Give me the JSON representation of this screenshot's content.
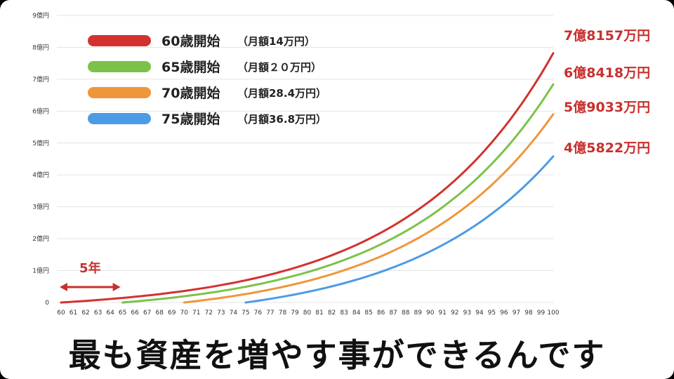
{
  "chart_data": {
    "type": "line",
    "x": [
      60,
      61,
      62,
      63,
      64,
      65,
      66,
      67,
      68,
      69,
      70,
      71,
      72,
      73,
      74,
      75,
      76,
      77,
      78,
      79,
      80,
      81,
      82,
      83,
      84,
      85,
      86,
      87,
      88,
      89,
      90,
      91,
      92,
      93,
      94,
      95,
      96,
      97,
      98,
      99,
      100
    ],
    "y_ticks": [
      "0",
      "1億円",
      "2億円",
      "3億円",
      "4億円",
      "5億円",
      "6億円",
      "7億円",
      "8億円",
      "9億円"
    ],
    "ylim": [
      0,
      9
    ],
    "xlim": [
      60,
      100
    ],
    "grid": true,
    "legend_position": "top-left",
    "series": [
      {
        "name": "60歳開始",
        "sub": "（月額14万円）",
        "color": "#d2322f",
        "start": 60,
        "end_value": 7.8157,
        "end_label": "7億8157万円"
      },
      {
        "name": "65歳開始",
        "sub": "（月額２０万円）",
        "color": "#7cc24a",
        "start": 65,
        "end_value": 6.8418,
        "end_label": "6億8418万円"
      },
      {
        "name": "70歳開始",
        "sub": "（月額28.4万円）",
        "color": "#f0963a",
        "start": 70,
        "end_value": 5.9033,
        "end_label": "5億9033万円"
      },
      {
        "name": "75歳開始",
        "sub": "（月額36.8万円）",
        "color": "#4c9be6",
        "start": 75,
        "end_value": 4.5822,
        "end_label": "4億5822万円"
      }
    ],
    "annotation": {
      "text": "5年",
      "from": 60,
      "to": 65
    }
  },
  "caption": "最も資産を増やす事ができるんです"
}
